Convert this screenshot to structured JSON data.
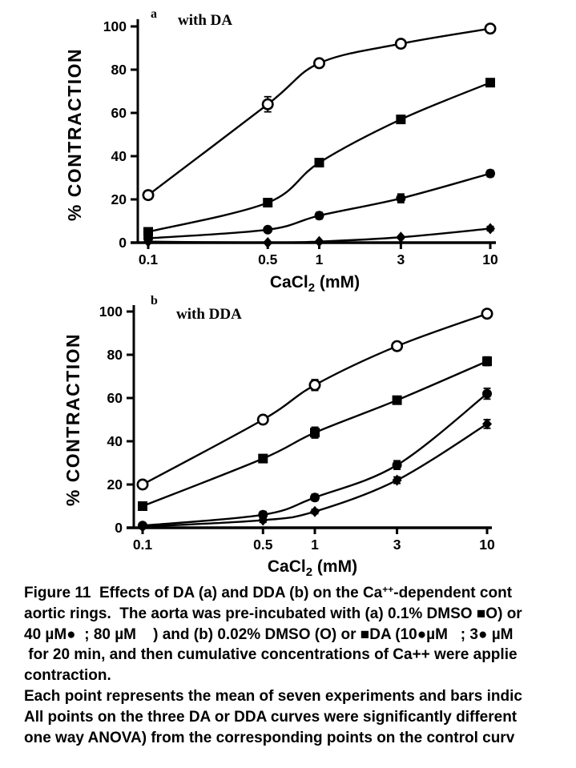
{
  "page": {
    "background": "#ffffff",
    "ink": "#000000"
  },
  "chart_data": [
    {
      "type": "line",
      "panel": "a",
      "panel_title": "with DA",
      "x_scale": "log",
      "x": [
        0.1,
        0.5,
        1,
        3,
        10
      ],
      "x_tick_labels": [
        "0.1",
        "0.5",
        "1",
        "3",
        "10"
      ],
      "xlabel": "CaCl2 (mM)",
      "ylabel": "% CONTRACTION",
      "ylim": [
        0,
        100
      ],
      "yticks": [
        0,
        20,
        40,
        60,
        80,
        100
      ],
      "grid": false,
      "legend": "none (series identified by marker symbols)",
      "series": [
        {
          "name": "DMSO control (open circle)",
          "symbol": "open-circle",
          "values": [
            22,
            64,
            83,
            92,
            99
          ],
          "errors": [
            2,
            3.5,
            1.5,
            1.5,
            1
          ]
        },
        {
          "name": "DA low dose (filled square)",
          "symbol": "filled-square",
          "values": [
            5,
            18.5,
            37,
            57,
            74
          ],
          "errors": [
            1,
            1,
            1.5,
            1.5,
            1.5
          ]
        },
        {
          "name": "DA mid dose (filled circle)",
          "symbol": "filled-circle",
          "values": [
            2,
            6,
            12.5,
            20.5,
            32
          ],
          "errors": [
            1,
            1,
            1.5,
            2,
            1.5
          ]
        },
        {
          "name": "DA high dose (filled diamond)",
          "symbol": "filled-diamond",
          "values": [
            0.5,
            0,
            0.5,
            2.5,
            6.5
          ],
          "errors": [
            0.4,
            0,
            0,
            0.4,
            1
          ]
        }
      ]
    },
    {
      "type": "line",
      "panel": "b",
      "panel_title": "with DDA",
      "x_scale": "log",
      "x": [
        0.1,
        0.5,
        1,
        3,
        10
      ],
      "x_tick_labels": [
        "0.1",
        "0.5",
        "1",
        "3",
        "10"
      ],
      "xlabel": "CaCl2 (mM)",
      "ylabel": "% CONTRACTION",
      "ylim": [
        0,
        100
      ],
      "yticks": [
        0,
        20,
        40,
        60,
        80,
        100
      ],
      "grid": false,
      "legend": "none (series identified by marker symbols)",
      "series": [
        {
          "name": "DMSO control (open circle)",
          "symbol": "open-circle",
          "values": [
            20,
            50,
            66,
            84,
            99
          ],
          "errors": [
            1.5,
            1.5,
            2.5,
            1.5,
            1
          ]
        },
        {
          "name": "DDA low dose (filled square)",
          "symbol": "filled-square",
          "values": [
            10,
            32,
            44,
            59,
            77
          ],
          "errors": [
            1,
            1.5,
            2.5,
            1.5,
            2
          ]
        },
        {
          "name": "DDA mid dose (filled circle)",
          "symbol": "filled-circle",
          "values": [
            1,
            6,
            14,
            29,
            62
          ],
          "errors": [
            0.5,
            1.5,
            1.5,
            2,
            2.5
          ]
        },
        {
          "name": "DDA high dose (filled diamond)",
          "symbol": "filled-diamond",
          "values": [
            0.5,
            3.5,
            7.5,
            22,
            48
          ],
          "errors": [
            0.4,
            1,
            1,
            1.5,
            2
          ]
        }
      ]
    }
  ],
  "caption": {
    "lines": [
      [
        {
          "t": "Figure 11  Effects of DA (a) and DDA (b) on the Ca"
        },
        {
          "t": "++",
          "sup": true
        },
        {
          "t": "-dependent cont"
        }
      ],
      [
        {
          "t": "aortic rings.  The aorta was pre-incubated with (a) 0.1% DMSO ■O) or"
        }
      ],
      [
        {
          "t": "40 µM●  ; 80 µM    ) and (b) 0.02% DMSO (O) or ■DA (10●µM   ; 3● µM"
        }
      ],
      [
        {
          "t": " for 20 min, and then cumulative concentrations of Ca++ were applie"
        }
      ],
      [
        {
          "t": "contraction."
        }
      ],
      [
        {
          "t": "Each point represents the mean of seven experiments and bars indic"
        }
      ],
      [
        {
          "t": "All points on the three DA or DDA curves were significantly different"
        }
      ],
      [
        {
          "t": "one way ANOVA) from the corresponding points on the control curv"
        }
      ]
    ]
  }
}
